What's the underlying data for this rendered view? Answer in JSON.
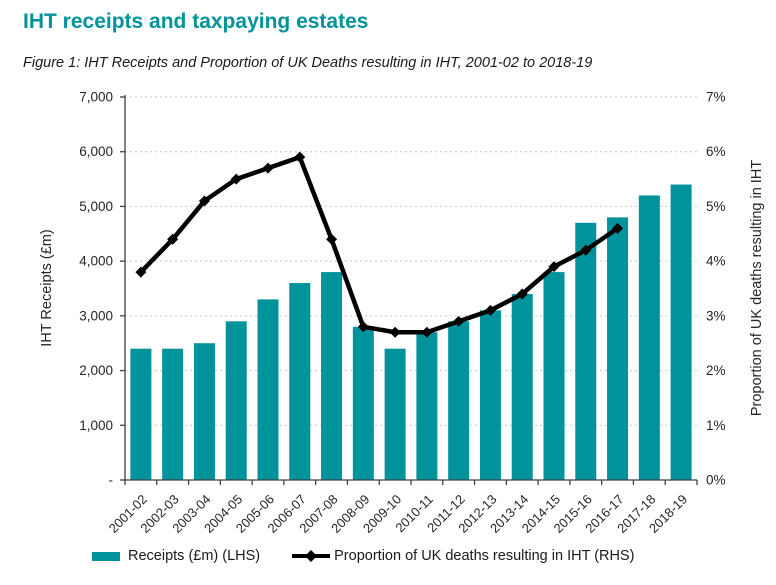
{
  "header": {
    "title": "IHT receipts and taxpaying estates",
    "subtitle": "Figure 1: IHT Receipts and Proportion of UK Deaths resulting in IHT, 2001-02 to 2018-19"
  },
  "chart_data": {
    "type": "combo",
    "categories": [
      "2001-02",
      "2002-03",
      "2003-04",
      "2004-05",
      "2005-06",
      "2006-07",
      "2007-08",
      "2008-09",
      "2009-10",
      "2010-11",
      "2011-12",
      "2012-13",
      "2013-14",
      "2014-15",
      "2015-16",
      "2016-17",
      "2017-18",
      "2018-19"
    ],
    "series": [
      {
        "name": "Receipts (£m) (LHS)",
        "type": "bar",
        "axis": "left",
        "color": "#00939B",
        "values": [
          2400,
          2400,
          2500,
          2900,
          3300,
          3600,
          3800,
          2800,
          2400,
          2700,
          2900,
          3100,
          3400,
          3800,
          4700,
          4800,
          5200,
          5400
        ]
      },
      {
        "name": "Proportion of UK deaths resulting in IHT (RHS)",
        "type": "line",
        "axis": "right",
        "color": "#000000",
        "marker": "diamond",
        "values": [
          3.8,
          4.4,
          5.1,
          5.5,
          5.7,
          5.9,
          4.4,
          2.8,
          2.7,
          2.7,
          2.9,
          3.1,
          3.4,
          3.9,
          4.2,
          4.6,
          null,
          null
        ]
      }
    ],
    "ylabel_left": "IHT Receipts (£m)",
    "ylabel_right": "Proportion of UK deaths resulting in IHT",
    "yticks_left": [
      "-",
      "1,000",
      "2,000",
      "3,000",
      "4,000",
      "5,000",
      "6,000",
      "7,000"
    ],
    "yticks_right": [
      "0%",
      "1%",
      "2%",
      "3%",
      "4%",
      "5%",
      "6%",
      "7%"
    ],
    "ylim_left": [
      0,
      7000
    ],
    "ylim_right": [
      0,
      7
    ],
    "grid": "horizontal-dashed",
    "legend_position": "bottom"
  },
  "colors": {
    "accent_teal": "#00939B",
    "line_black": "#000000",
    "gridline": "#c6c6c6",
    "axis": "#404040",
    "tick_text": "#262626"
  }
}
